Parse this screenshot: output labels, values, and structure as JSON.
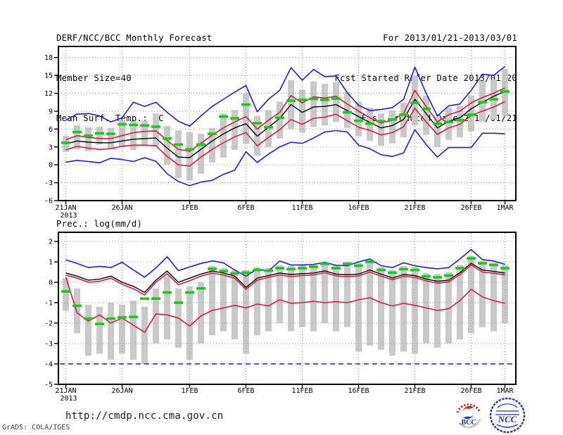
{
  "header": {
    "title": "DERF/NCC/BCC Monthly Forecast",
    "member_size": "Member Size=40",
    "for_range": "For 2013/01/21-2013/03/01",
    "fcst_started": "Fcst Started Refer Date 2013/01/20",
    "fcst_produced": "Fcst Produced Date 2013/01/21"
  },
  "footer": {
    "url": "http://cmdp.ncc.cma.gov.cn",
    "credit": "GrADS: COLA/IGES",
    "logos": {
      "bcc": "BCC",
      "bcc_ring_text": "BEIJING CLIMATE CENTER",
      "ncc": "NCC"
    }
  },
  "colors": {
    "line_blue": "#1c1cee",
    "line_red": "#dd1c3c",
    "line_black": "#000000",
    "dash_green": "#10d010",
    "bar_gray": "#c9c9c9",
    "grid_gray": "#999999"
  },
  "chart_data": [
    {
      "type": "line",
      "name": "surface-temperature-chart",
      "title": "Mean Surf. Temp.: °C",
      "year_label": "2013",
      "ylim": [
        -6,
        18
      ],
      "yticks": [
        18,
        15,
        12,
        9,
        6,
        3,
        0,
        -3,
        -6
      ],
      "xticks": [
        {
          "day": 0,
          "label": "21JAN"
        },
        {
          "day": 5,
          "label": "26JAN"
        },
        {
          "day": 11,
          "label": "1FEB"
        },
        {
          "day": 16,
          "label": "6FEB"
        },
        {
          "day": 21,
          "label": "11FEB"
        },
        {
          "day": 26,
          "label": "16FEB"
        },
        {
          "day": 31,
          "label": "21FEB"
        },
        {
          "day": 36,
          "label": "26FEB"
        },
        {
          "day": 39,
          "label": "1MAR"
        }
      ],
      "n_days": 40,
      "series": [
        {
          "name": "ensemble-max",
          "color": "blue",
          "values": [
            7.5,
            8.5,
            8.6,
            8.2,
            7.2,
            7.9,
            10.5,
            9.8,
            10.5,
            8.8,
            7.3,
            6.5,
            8.2,
            9.8,
            11.0,
            12.2,
            13.3,
            8.9,
            11.0,
            12.5,
            16.3,
            14.2,
            16.0,
            14.8,
            14.9,
            12.1,
            10.0,
            9.1,
            9.3,
            9.6,
            11.0,
            16.4,
            12.0,
            8.2,
            9.9,
            10.2,
            12.5,
            15.2,
            15.0,
            16.5
          ]
        },
        {
          "name": "upper-spread",
          "color": "red",
          "values": [
            4.2,
            4.9,
            4.6,
            4.4,
            4.4,
            4.9,
            5.4,
            5.6,
            5.7,
            4.1,
            2.6,
            2.3,
            3.6,
            5.0,
            6.2,
            7.2,
            8.1,
            6.0,
            7.5,
            8.8,
            11.6,
            10.4,
            11.4,
            11.2,
            11.5,
            10.2,
            9.0,
            7.9,
            7.0,
            7.5,
            8.6,
            12.5,
            9.8,
            7.2,
            8.4,
            9.0,
            10.4,
            11.3,
            12.0,
            12.9
          ]
        },
        {
          "name": "ensemble-mean",
          "color": "black",
          "values": [
            3.5,
            4.0,
            3.8,
            3.7,
            3.7,
            4.0,
            4.3,
            4.4,
            4.5,
            2.8,
            1.3,
            1.2,
            2.6,
            4.0,
            5.2,
            6.2,
            6.9,
            4.8,
            6.3,
            7.8,
            10.1,
            8.8,
            9.7,
            9.8,
            10.1,
            9.1,
            8.1,
            7.1,
            6.2,
            6.6,
            7.6,
            11.0,
            8.6,
            6.2,
            7.3,
            7.9,
            9.4,
            10.5,
            11.5,
            12.3
          ]
        },
        {
          "name": "lower-spread",
          "color": "red",
          "values": [
            2.5,
            3.1,
            2.8,
            2.6,
            2.7,
            3.1,
            3.3,
            3.3,
            3.2,
            1.4,
            0.0,
            -0.2,
            1.3,
            2.6,
            3.7,
            4.7,
            5.4,
            3.2,
            4.6,
            5.9,
            7.6,
            6.8,
            7.8,
            8.0,
            8.5,
            7.4,
            6.3,
            5.8,
            5.0,
            5.4,
            6.4,
            9.5,
            7.2,
            5.1,
            6.2,
            6.8,
            8.3,
            9.0,
            9.7,
            10.6
          ]
        },
        {
          "name": "ensemble-min",
          "color": "blue",
          "values": [
            0.45,
            0.75,
            0.55,
            0.35,
            1.1,
            0.9,
            0.55,
            1.2,
            0.6,
            -1.5,
            -2.8,
            -3.5,
            -2.9,
            -2.6,
            -1.6,
            -0.9,
            2.2,
            0.4,
            1.8,
            3.0,
            3.8,
            3.6,
            4.5,
            5.5,
            5.75,
            5.5,
            3.3,
            2.7,
            1.7,
            1.4,
            2.0,
            5.9,
            3.4,
            1.3,
            2.9,
            2.9,
            2.9,
            5.3,
            5.3,
            5.2
          ]
        }
      ],
      "markers": {
        "name": "daily-median-dash",
        "color": "green",
        "values": [
          3.7,
          5.5,
          4.9,
          5.3,
          5.2,
          6.8,
          6.7,
          6.6,
          6.4,
          4.4,
          3.4,
          2.6,
          3.4,
          5.2,
          8.1,
          7.8,
          10.1,
          7.0,
          6.3,
          7.9,
          10.75,
          10.9,
          11.05,
          10.9,
          11.1,
          8.8,
          7.4,
          6.9,
          7.3,
          7.6,
          8.4,
          10.4,
          9.4,
          6.9,
          7.2,
          7.5,
          8.4,
          10.5,
          11.0,
          12.3
        ]
      },
      "bars": {
        "name": "member-range-bar",
        "low": [
          2.2,
          2.6,
          2.3,
          3.4,
          2.6,
          3.0,
          2.5,
          3.3,
          3.1,
          0.0,
          -2.2,
          -2.6,
          -1.5,
          0.4,
          1.2,
          2.5,
          3.5,
          1.5,
          3.0,
          4.4,
          6.0,
          5.4,
          6.4,
          6.6,
          7.2,
          6.2,
          4.8,
          4.0,
          3.2,
          3.6,
          4.6,
          6.6,
          5.0,
          3.0,
          4.2,
          4.6,
          5.6,
          7.2,
          7.6,
          8.2
        ],
        "high": [
          4.9,
          6.6,
          6.3,
          6.4,
          6.2,
          7.5,
          7.3,
          7.4,
          8.6,
          6.5,
          5.8,
          5.5,
          5.2,
          6.2,
          8.6,
          9.2,
          12.0,
          8.2,
          9.2,
          10.6,
          14.2,
          12.6,
          14.0,
          13.6,
          13.9,
          12.2,
          10.6,
          9.6,
          8.6,
          9.1,
          10.4,
          14.9,
          11.6,
          8.1,
          9.6,
          9.9,
          11.6,
          14.1,
          14.3,
          16.1
        ]
      }
    },
    {
      "type": "line",
      "name": "precipitation-chart",
      "title": "Prec.: log(mm/d)",
      "year_label": "2013",
      "ylim": [
        -5,
        2
      ],
      "yticks": [
        2,
        1,
        0,
        -1,
        -2,
        -3,
        -4,
        -5
      ],
      "xticks": [
        {
          "day": 0,
          "label": "21JAN"
        },
        {
          "day": 5,
          "label": "26JAN"
        },
        {
          "day": 11,
          "label": "1FEB"
        },
        {
          "day": 16,
          "label": "6FEB"
        },
        {
          "day": 21,
          "label": "11FEB"
        },
        {
          "day": 26,
          "label": "16FEB"
        },
        {
          "day": 31,
          "label": "21FEB"
        },
        {
          "day": 36,
          "label": "26FEB"
        },
        {
          "day": 39,
          "label": "1MAR"
        }
      ],
      "n_days": 40,
      "baseline": {
        "name": "clip-floor-line",
        "value": -4,
        "color": "blue",
        "style": "dashed"
      },
      "series": [
        {
          "name": "ensemble-max",
          "color": "blue",
          "values": [
            1.1,
            0.92,
            0.72,
            0.78,
            0.72,
            0.98,
            0.6,
            0.25,
            0.7,
            1.25,
            0.57,
            0.75,
            0.92,
            1.05,
            0.95,
            0.6,
            0.3,
            0.65,
            0.55,
            1.04,
            0.85,
            0.85,
            0.88,
            0.97,
            0.83,
            0.81,
            1.0,
            1.14,
            0.81,
            0.72,
            0.95,
            0.81,
            0.72,
            0.66,
            0.72,
            1.14,
            1.6,
            1.11,
            1.04,
            0.88
          ]
        },
        {
          "name": "upper-spread",
          "color": "red",
          "values": [
            0.35,
            0.2,
            0.0,
            0.05,
            0.2,
            -0.1,
            -0.32,
            -0.62,
            0.0,
            0.42,
            -0.12,
            0.08,
            0.3,
            0.45,
            0.35,
            0.2,
            -0.35,
            0.1,
            0.24,
            0.36,
            0.28,
            0.33,
            0.36,
            0.47,
            0.31,
            0.28,
            0.31,
            0.5,
            0.3,
            0.12,
            0.29,
            0.24,
            0.07,
            -0.04,
            0.01,
            0.38,
            0.85,
            0.5,
            0.44,
            0.36
          ]
        },
        {
          "name": "ensemble-mean",
          "color": "black",
          "values": [
            0.45,
            0.3,
            0.1,
            0.15,
            0.3,
            0.0,
            -0.2,
            -0.5,
            0.1,
            0.55,
            0.0,
            0.2,
            0.4,
            0.55,
            0.45,
            0.3,
            -0.25,
            0.2,
            0.33,
            0.45,
            0.38,
            0.42,
            0.45,
            0.56,
            0.4,
            0.37,
            0.4,
            0.6,
            0.4,
            0.21,
            0.38,
            0.33,
            0.16,
            0.05,
            0.1,
            0.47,
            0.93,
            0.6,
            0.53,
            0.45
          ]
        },
        {
          "name": "lower-spread",
          "color": "red",
          "values": [
            0.26,
            -1.5,
            -1.9,
            -1.6,
            -2.0,
            -1.75,
            -2.1,
            -2.45,
            -1.55,
            -1.6,
            -1.75,
            -2.15,
            -1.65,
            -1.38,
            -1.26,
            -1.13,
            -1.26,
            -1.07,
            -1.16,
            -0.86,
            -1.03,
            -1.0,
            -0.93,
            -1.0,
            -0.95,
            -1.0,
            -0.86,
            -0.76,
            -1.0,
            -1.16,
            -1.03,
            -1.13,
            -1.26,
            -1.38,
            -1.3,
            -0.9,
            -0.34,
            -0.72,
            -0.9,
            -1.03
          ]
        }
      ],
      "markers": {
        "name": "daily-median-dash",
        "color": "green",
        "values": [
          -0.45,
          -1.15,
          -1.78,
          -2.04,
          -1.78,
          -1.72,
          -1.7,
          -0.8,
          -0.8,
          -0.5,
          -1.0,
          -0.5,
          -0.3,
          0.66,
          0.55,
          0.43,
          0.47,
          0.6,
          0.57,
          0.69,
          0.64,
          0.69,
          0.76,
          0.9,
          0.69,
          0.9,
          0.81,
          1.0,
          0.6,
          0.47,
          0.64,
          0.6,
          0.29,
          0.24,
          0.33,
          0.69,
          1.17,
          0.93,
          0.85,
          0.69
        ]
      },
      "bars": {
        "name": "member-range-bar",
        "low": [
          -1.4,
          -2.5,
          -3.6,
          -3.5,
          -3.8,
          -3.5,
          -3.8,
          -4.0,
          -3.0,
          -2.8,
          -3.2,
          -3.8,
          -3.0,
          -2.6,
          -2.4,
          -2.8,
          -3.5,
          -2.6,
          -2.4,
          -2.0,
          -2.4,
          -2.2,
          -2.4,
          -2.0,
          -2.4,
          -2.2,
          -3.4,
          -3.1,
          -3.3,
          -3.6,
          -3.4,
          -3.5,
          -3.0,
          -3.2,
          -3.0,
          -2.8,
          -2.5,
          -2.2,
          -2.4,
          -2.0
        ],
        "high": [
          0.2,
          -0.3,
          -1.1,
          -1.2,
          -1.0,
          -1.1,
          -0.9,
          -1.2,
          -0.3,
          0.3,
          -0.3,
          -0.2,
          0.0,
          0.8,
          0.7,
          0.6,
          0.6,
          0.75,
          0.7,
          0.85,
          0.8,
          0.85,
          0.9,
          1.0,
          0.85,
          1.0,
          0.95,
          1.1,
          0.75,
          0.6,
          0.8,
          0.75,
          0.45,
          0.4,
          0.5,
          0.85,
          1.3,
          1.05,
          0.95,
          0.85
        ]
      }
    }
  ]
}
